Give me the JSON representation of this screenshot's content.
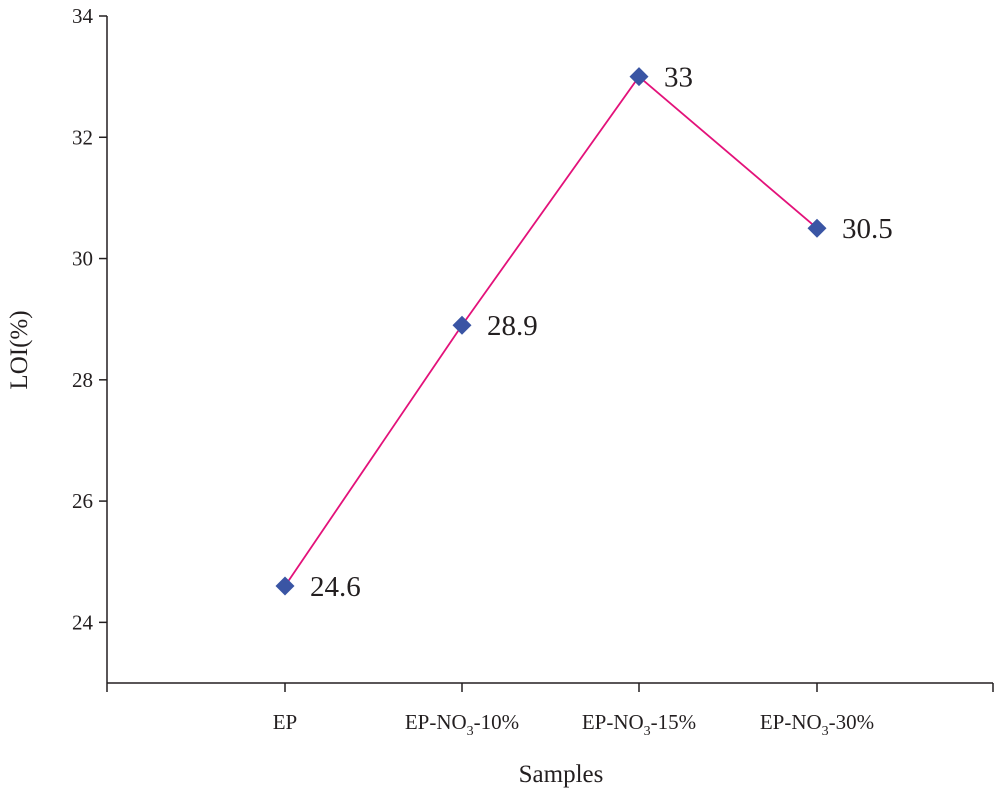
{
  "chart_data": {
    "type": "line",
    "xlabel": "Samples",
    "ylabel": "LOI(%)",
    "categories": [
      {
        "main": "EP",
        "sub": "",
        "suffix": ""
      },
      {
        "main": "EP-NO",
        "sub": "3",
        "suffix": "-10%"
      },
      {
        "main": "EP-NO",
        "sub": "3",
        "suffix": "-15%"
      },
      {
        "main": "EP-NO",
        "sub": "3",
        "suffix": "-30%"
      }
    ],
    "values": [
      24.6,
      28.9,
      33,
      30.5
    ],
    "data_labels": [
      "24.6",
      "28.9",
      "33",
      "30.5"
    ],
    "y_ticks": [
      "24",
      "26",
      "28",
      "30",
      "32",
      "34"
    ],
    "ylim": [
      23,
      34
    ],
    "grid": false,
    "legend": "none",
    "colors": {
      "line": "#e3127a",
      "marker": "#3a55a4",
      "axis": "#231f20"
    },
    "marker": "diamond"
  }
}
